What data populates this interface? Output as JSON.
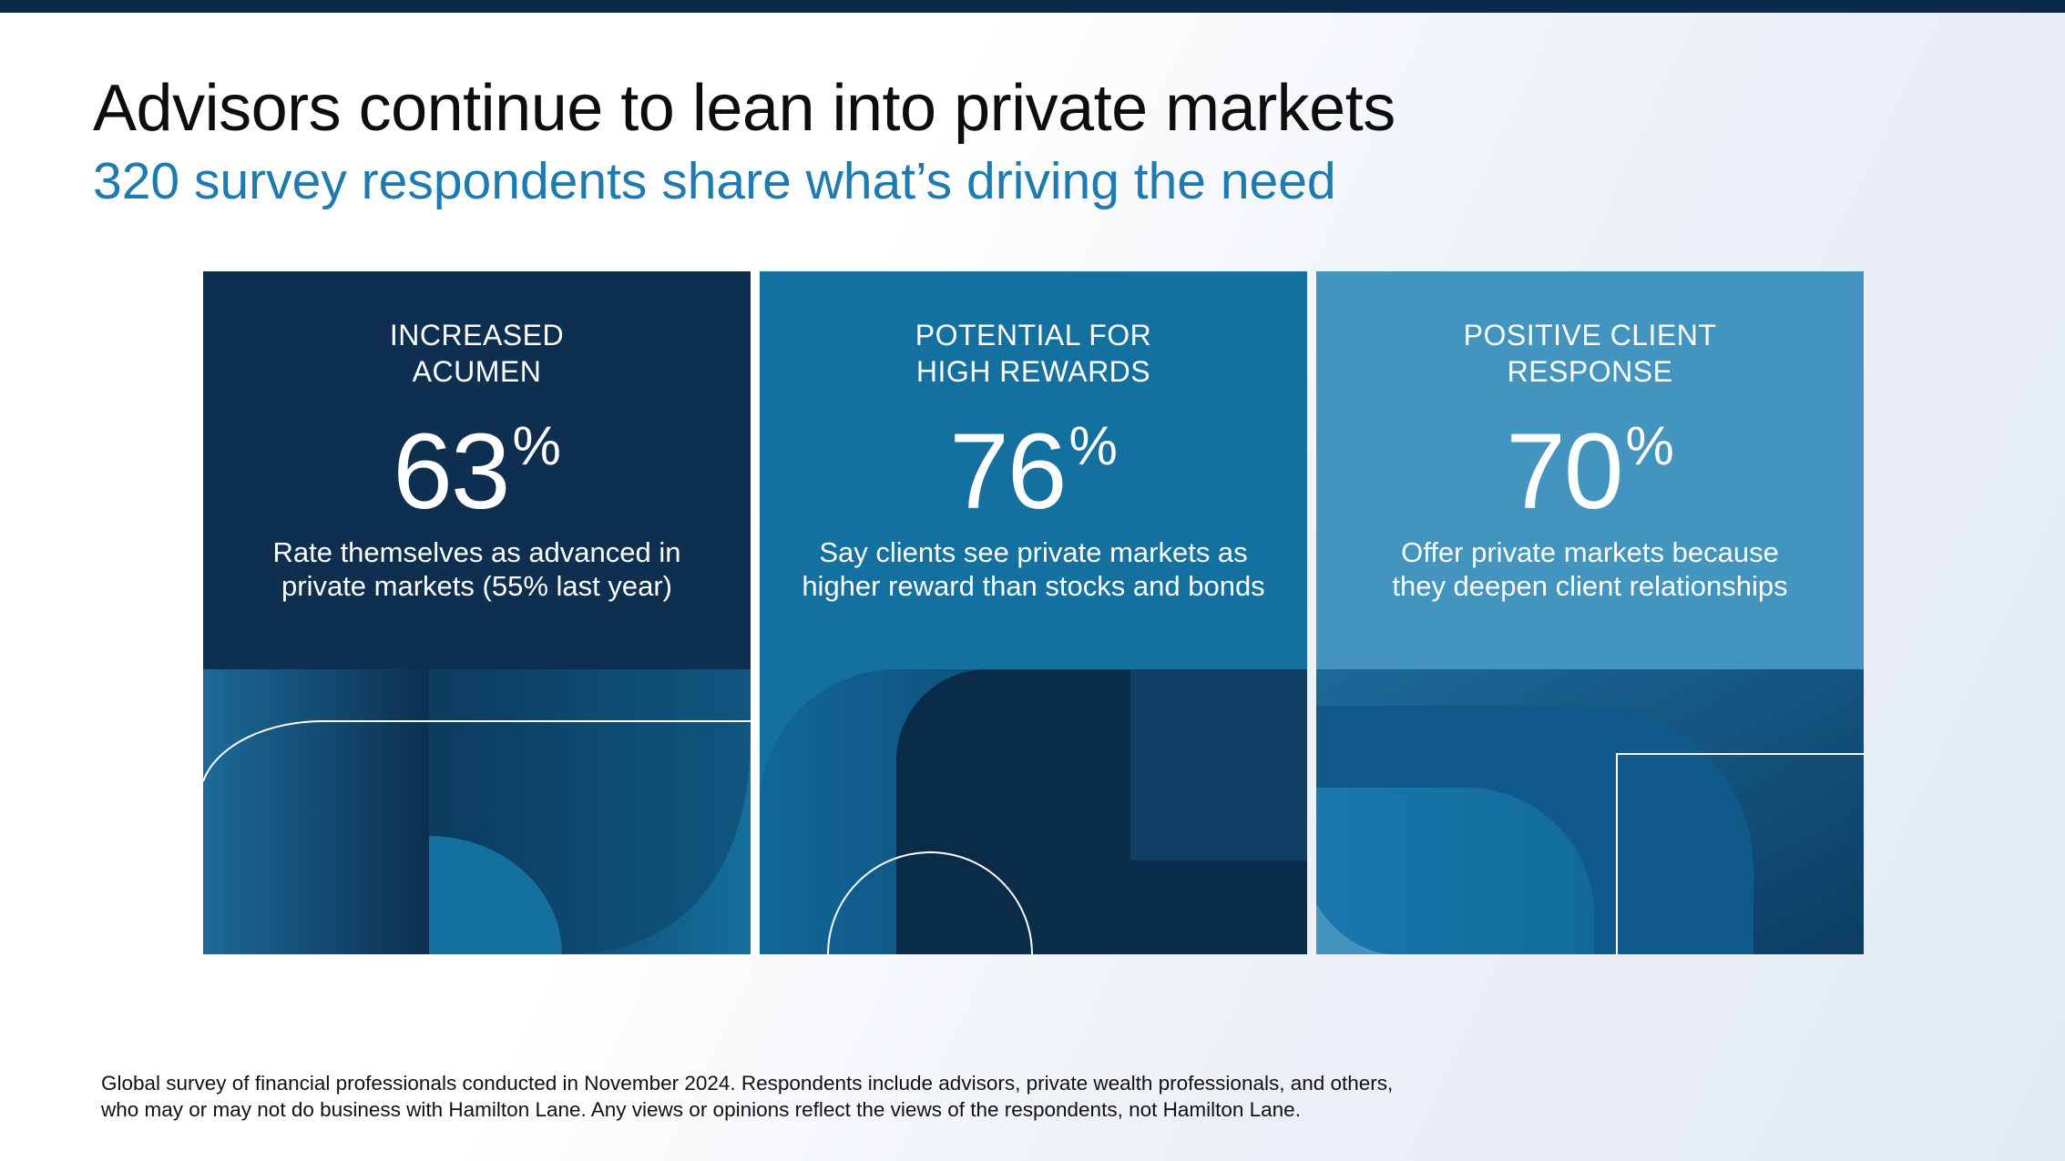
{
  "header": {
    "title": "Advisors continue to lean into private markets",
    "subtitle": "320 survey respondents share what’s driving the need"
  },
  "cards": [
    {
      "label_line1": "INCREASED",
      "label_line2": "ACUMEN",
      "value": "63",
      "unit": "%",
      "desc_line1": "Rate themselves as advanced in",
      "desc_line2": "private markets (55% last year)"
    },
    {
      "label_line1": "POTENTIAL FOR",
      "label_line2": "HIGH REWARDS",
      "value": "76",
      "unit": "%",
      "desc_line1": "Say clients see private markets as",
      "desc_line2": "higher reward than stocks and bonds"
    },
    {
      "label_line1": "POSITIVE CLIENT",
      "label_line2": "RESPONSE",
      "value": "70",
      "unit": "%",
      "desc_line1": "Offer private markets because",
      "desc_line2": "they deepen client relationships"
    }
  ],
  "footnote": {
    "line1": "Global survey of financial professionals conducted in November 2024. Respondents include advisors, private wealth professionals, and others,",
    "line2": "who may or may not do business with Hamilton Lane. Any views or opinions reflect the views of the respondents, not Hamilton Lane."
  },
  "colors": {
    "navy": "#0e2f4f",
    "mid_blue": "#13709f",
    "light_blue": "#4394bf",
    "subtitle_blue": "#1f7ab0",
    "top_bar": "#0b2a4a"
  }
}
